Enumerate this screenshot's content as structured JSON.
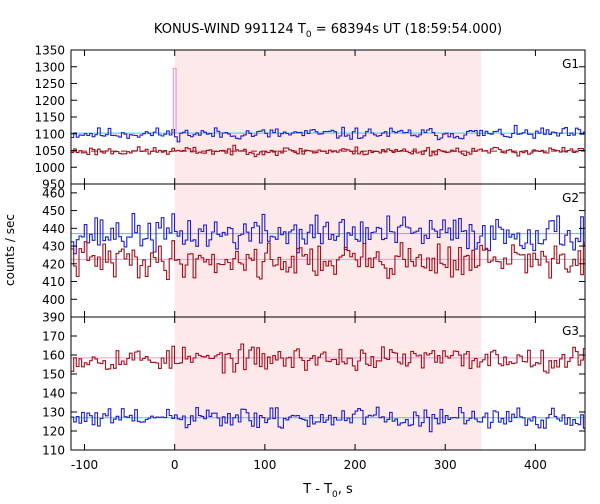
{
  "colors": {
    "blue": "#1f1fcf",
    "red": "#a3101b",
    "cyan": "#46c6e6",
    "pink": "#e99ad6",
    "shade": "#fde8ea"
  },
  "chart_data": {
    "type": "line",
    "title_main": "KONUS-WIND 991124 T",
    "title_sub": "0",
    "title_rest": " = 68394s UT (18:59:54.000)",
    "xlabel_main": "T - T",
    "xlabel_sub": "0",
    "xlabel_rest": ", s",
    "ylabel": "counts / sec",
    "xlim": [
      -115,
      455
    ],
    "x_ticks": [
      -100,
      0,
      100,
      200,
      300,
      400
    ],
    "shaded_interval": [
      0,
      340
    ],
    "bin_width": 2.944,
    "panels": [
      {
        "label": "G1",
        "ylim": [
          950,
          1350
        ],
        "y_ticks": [
          950,
          1000,
          1050,
          1100,
          1150,
          1200,
          1250,
          1300,
          1350
        ],
        "series": [
          {
            "color": "blue",
            "style": "step",
            "mean": 1100,
            "amplitude": 14,
            "seed": 11
          },
          {
            "color": "red",
            "style": "step",
            "mean": 1048,
            "amplitude": 10,
            "seed": 23
          }
        ],
        "background_lines": [
          {
            "color": "cyan",
            "value": 1102,
            "dashed": false
          },
          {
            "color": "red",
            "value": 1048,
            "dashed": true
          }
        ],
        "spike": {
          "color": "pink",
          "x": [
            -1.5,
            1.5
          ],
          "value": 1295
        }
      },
      {
        "label": "G2",
        "ylim": [
          390,
          465
        ],
        "y_ticks": [
          390,
          400,
          410,
          420,
          430,
          440,
          450,
          460
        ],
        "series": [
          {
            "color": "blue",
            "style": "step",
            "mean": 437,
            "amplitude": 8,
            "seed": 37
          },
          {
            "color": "red",
            "style": "step",
            "mean": 422,
            "amplitude": 8,
            "seed": 41
          }
        ],
        "background_lines": [
          {
            "color": "cyan",
            "value": 437,
            "dashed": false
          },
          {
            "color": "pink",
            "value": 422.5,
            "dashed": false
          }
        ]
      },
      {
        "label": "G3",
        "ylim": [
          110,
          180
        ],
        "y_ticks": [
          110,
          120,
          130,
          140,
          150,
          160,
          170
        ],
        "series": [
          {
            "color": "red",
            "style": "step",
            "mean": 158,
            "amplitude": 5,
            "seed": 53
          },
          {
            "color": "blue",
            "style": "step",
            "mean": 126.5,
            "amplitude": 4.5,
            "seed": 61
          }
        ],
        "background_lines": [
          {
            "color": "pink",
            "value": 158.5,
            "dashed": false
          },
          {
            "color": "cyan",
            "value": 127,
            "dashed": false
          }
        ]
      }
    ]
  }
}
